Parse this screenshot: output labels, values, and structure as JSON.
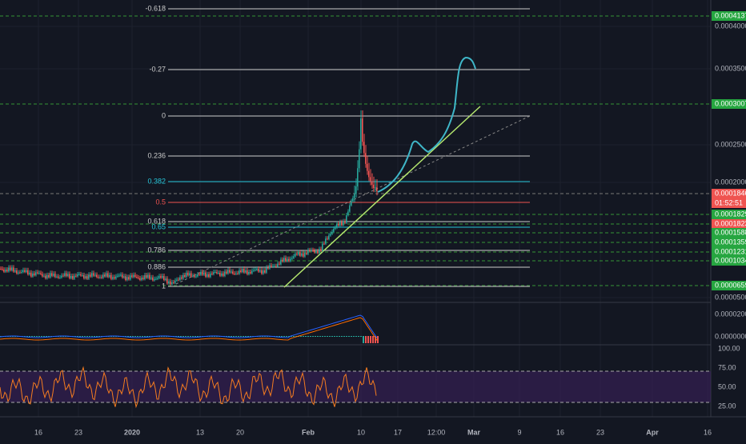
{
  "price_axis": {
    "labels": [
      "0.0004000",
      "0.0003500",
      "0.0002500",
      "0.0002000",
      "0.0000500"
    ],
    "tags": [
      {
        "text": "0.0004137",
        "kind": "green"
      },
      {
        "text": "0.0003007",
        "kind": "green"
      },
      {
        "text": "0.0001846",
        "kind": "red"
      },
      {
        "text": "01:52:51",
        "kind": "red"
      },
      {
        "text": "0.0001829",
        "kind": "green"
      },
      {
        "text": "0.0001823",
        "kind": "red"
      },
      {
        "text": "0.0001588",
        "kind": "green"
      },
      {
        "text": "0.0001359",
        "kind": "green"
      },
      {
        "text": "0.0001231",
        "kind": "green"
      },
      {
        "text": "0.0001034",
        "kind": "green"
      },
      {
        "text": "0.0000659",
        "kind": "green"
      }
    ]
  },
  "fib_levels": [
    "-0.618",
    "-0.27",
    "0",
    "0.236",
    "0.382",
    "0.5",
    "0.618",
    "0.65",
    "0.786",
    "0.886",
    "1"
  ],
  "macd_axis": [
    "0.0000200",
    "0.0000000"
  ],
  "rsi_axis": [
    "100.00",
    "75.00",
    "50.00",
    "25.00"
  ],
  "time_axis": [
    "16",
    "23",
    "2020",
    "13",
    "20",
    "Feb",
    "10",
    "17",
    "12:00",
    "Mar",
    "9",
    "16",
    "23",
    "Apr",
    "16"
  ]
}
